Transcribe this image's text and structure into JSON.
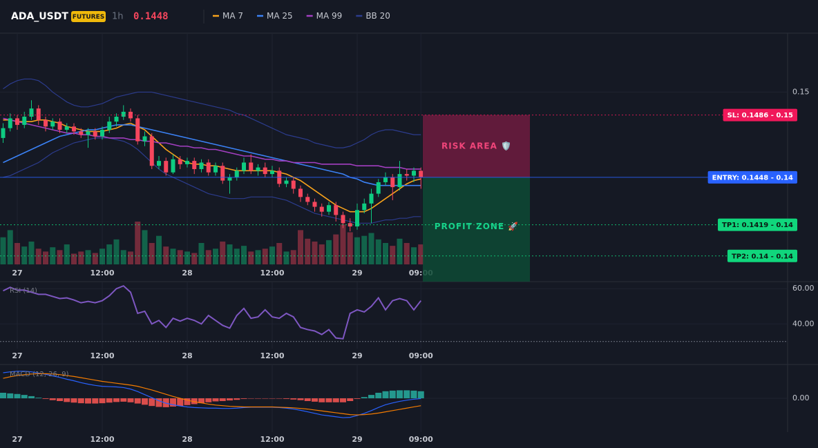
{
  "header": {
    "symbol": "ADA_USDT",
    "badge": "FUTURES",
    "interval": "1h",
    "price": 0.1448
  },
  "chart_data": [
    {
      "type": "candlestick",
      "categories": [
        null,
        null,
        "27",
        null,
        null,
        null,
        null,
        null,
        null,
        null,
        null,
        null,
        null,
        null,
        "12:00",
        null,
        null,
        null,
        null,
        null,
        null,
        null,
        null,
        null,
        null,
        null,
        "28",
        null,
        null,
        null,
        null,
        null,
        null,
        null,
        null,
        null,
        null,
        null,
        "12:00",
        null,
        null,
        null,
        null,
        null,
        null,
        null,
        null,
        null,
        null,
        null,
        "29",
        null,
        null,
        null,
        null,
        null,
        null,
        null,
        null,
        "09:00"
      ],
      "open": [
        0.1472,
        0.1478,
        0.1484,
        0.148,
        0.1485,
        0.149,
        0.1483,
        0.1479,
        0.1482,
        0.1477,
        0.1479,
        0.1476,
        0.1474,
        0.1476,
        0.1473,
        0.1477,
        0.1482,
        0.1485,
        0.1488,
        0.1484,
        0.147,
        0.1473,
        0.1455,
        0.1458,
        0.1451,
        0.1459,
        0.1456,
        0.1458,
        0.1453,
        0.1457,
        0.1451,
        0.1455,
        0.1446,
        0.1448,
        0.1452,
        0.1457,
        0.1452,
        0.1454,
        0.145,
        0.1452,
        0.1444,
        0.1446,
        0.1441,
        0.1436,
        0.1433,
        0.143,
        0.1427,
        0.1431,
        0.1425,
        0.142,
        0.1418,
        0.1428,
        0.1432,
        0.1438,
        0.1445,
        0.1448,
        0.1442,
        0.145,
        0.1449,
        0.1452
      ],
      "high": [
        0.1481,
        0.1487,
        0.1486,
        0.1488,
        0.1495,
        0.1492,
        0.1485,
        0.1484,
        0.1484,
        0.1481,
        0.1481,
        0.1478,
        0.1478,
        0.1478,
        0.1479,
        0.1485,
        0.1487,
        0.1492,
        0.149,
        0.1486,
        0.1476,
        0.1475,
        0.1461,
        0.146,
        0.1462,
        0.1461,
        0.146,
        0.146,
        0.1459,
        0.1459,
        0.1457,
        0.1457,
        0.145,
        0.1454,
        0.146,
        0.1462,
        0.1456,
        0.1457,
        0.1455,
        0.1454,
        0.1448,
        0.1448,
        0.1443,
        0.1438,
        0.1435,
        0.1432,
        0.1433,
        0.1433,
        0.1427,
        0.1423,
        0.1432,
        0.1435,
        0.1441,
        0.1447,
        0.1451,
        0.145,
        0.1458,
        0.1453,
        0.1454,
        0.1454
      ],
      "low": [
        0.1469,
        0.1476,
        0.1477,
        0.1478,
        0.1483,
        0.148,
        0.1476,
        0.1477,
        0.1475,
        0.1475,
        0.1474,
        0.1472,
        0.1466,
        0.1471,
        0.1471,
        0.1475,
        0.1479,
        0.1483,
        0.1482,
        0.1468,
        0.1467,
        0.1453,
        0.1453,
        0.1449,
        0.145,
        0.1453,
        0.1454,
        0.145,
        0.1451,
        0.1449,
        0.1449,
        0.1444,
        0.1438,
        0.1446,
        0.145,
        0.145,
        0.1449,
        0.1448,
        0.1448,
        0.1442,
        0.1442,
        0.1438,
        0.1433,
        0.1431,
        0.1427,
        0.1424,
        0.1425,
        0.1421,
        0.1417,
        0.1415,
        0.1416,
        0.1426,
        0.142,
        0.1436,
        0.1443,
        0.1434,
        0.144,
        0.1446,
        0.1445,
        0.1441
      ],
      "close": [
        0.1478,
        0.1484,
        0.148,
        0.1485,
        0.149,
        0.1483,
        0.1479,
        0.1482,
        0.1477,
        0.1479,
        0.1476,
        0.1474,
        0.1476,
        0.1473,
        0.1477,
        0.1482,
        0.1485,
        0.1488,
        0.1484,
        0.147,
        0.1473,
        0.1455,
        0.1458,
        0.1451,
        0.1459,
        0.1456,
        0.1458,
        0.1453,
        0.1457,
        0.1451,
        0.1455,
        0.1446,
        0.1448,
        0.1452,
        0.1457,
        0.1452,
        0.1454,
        0.145,
        0.1452,
        0.1444,
        0.1446,
        0.1441,
        0.1436,
        0.1433,
        0.143,
        0.1427,
        0.1431,
        0.1425,
        0.142,
        0.1418,
        0.1428,
        0.1432,
        0.1438,
        0.1445,
        0.1448,
        0.1442,
        0.145,
        0.1449,
        0.1452,
        0.1448
      ],
      "volume": [
        38,
        48,
        30,
        25,
        32,
        22,
        18,
        24,
        20,
        28,
        15,
        18,
        20,
        16,
        22,
        28,
        35,
        20,
        18,
        60,
        48,
        30,
        40,
        25,
        22,
        20,
        18,
        16,
        30,
        20,
        22,
        32,
        28,
        22,
        26,
        18,
        20,
        22,
        25,
        30,
        18,
        20,
        48,
        36,
        32,
        28,
        34,
        42,
        56,
        45,
        38,
        40,
        44,
        35,
        30,
        26,
        36,
        30,
        24,
        28
      ],
      "up_color": "#0ecb81",
      "down_color": "#f6465d",
      "series": [
        {
          "name": "MA 7",
          "color": "#f7a21b",
          "values": [
            0.1483,
            0.1483,
            0.1482,
            0.1482,
            0.1482,
            0.1483,
            0.1483,
            0.1482,
            0.1481,
            0.1479,
            0.1478,
            0.1477,
            0.1476,
            0.1476,
            0.1476,
            0.1477,
            0.1478,
            0.148,
            0.1481,
            0.1479,
            0.1477,
            0.1473,
            0.1469,
            0.1465,
            0.1462,
            0.1459,
            0.1457,
            0.1456,
            0.1456,
            0.1455,
            0.1455,
            0.1454,
            0.1453,
            0.1452,
            0.1452,
            0.1452,
            0.1452,
            0.1452,
            0.1452,
            0.1451,
            0.145,
            0.1448,
            0.1446,
            0.1443,
            0.144,
            0.1437,
            0.1434,
            0.1431,
            0.1429,
            0.1427,
            0.1427,
            0.1427,
            0.1429,
            0.1432,
            0.1435,
            0.1438,
            0.1441,
            0.1444,
            0.1446,
            0.1447
          ]
        },
        {
          "name": "MA 25",
          "color": "#3b82f6",
          "values": [
            0.1457,
            0.1459,
            0.1461,
            0.1463,
            0.1465,
            0.1467,
            0.1469,
            0.1471,
            0.1473,
            0.1474,
            0.1475,
            0.1476,
            0.1477,
            0.1477,
            0.1478,
            0.1479,
            0.148,
            0.148,
            0.148,
            0.1479,
            0.1478,
            0.1477,
            0.1476,
            0.1475,
            0.1474,
            0.1473,
            0.1472,
            0.1471,
            0.147,
            0.1469,
            0.1468,
            0.1467,
            0.1466,
            0.1465,
            0.1464,
            0.1463,
            0.1462,
            0.1461,
            0.146,
            0.1459,
            0.1458,
            0.1457,
            0.1456,
            0.1455,
            0.1454,
            0.1453,
            0.1452,
            0.1451,
            0.145,
            0.1448,
            0.1447,
            0.1445,
            0.1444,
            0.1443,
            0.1443,
            0.1443,
            0.1443,
            0.1443,
            0.1443,
            0.1443
          ]
        },
        {
          "name": "MA 99",
          "color": "#a43fc2",
          "values": [
            0.1484,
            0.1483,
            0.1482,
            0.1481,
            0.148,
            0.1479,
            0.1478,
            0.1477,
            0.1476,
            0.1475,
            0.1475,
            0.1474,
            0.1474,
            0.1473,
            0.1473,
            0.1472,
            0.1472,
            0.1472,
            0.1471,
            0.1471,
            0.147,
            0.147,
            0.1469,
            0.1469,
            0.1468,
            0.1467,
            0.1467,
            0.1466,
            0.1466,
            0.1465,
            0.1465,
            0.1464,
            0.1463,
            0.1462,
            0.1461,
            0.1461,
            0.146,
            0.1459,
            0.1459,
            0.1458,
            0.1458,
            0.1457,
            0.1457,
            0.1457,
            0.1457,
            0.1456,
            0.1456,
            0.1456,
            0.1456,
            0.1456,
            0.1455,
            0.1455,
            0.1455,
            0.1455,
            0.1454,
            0.1454,
            0.1454,
            0.1453,
            0.1453,
            0.1453
          ]
        },
        {
          "name": "BB 20",
          "color": "#2c3c8e",
          "upper": [
            0.1502,
            0.1505,
            0.1507,
            0.1508,
            0.1508,
            0.1507,
            0.1504,
            0.15,
            0.1497,
            0.1494,
            0.1492,
            0.1491,
            0.1491,
            0.1492,
            0.1493,
            0.1495,
            0.1497,
            0.1498,
            0.1499,
            0.15,
            0.15,
            0.15,
            0.1499,
            0.1498,
            0.1497,
            0.1496,
            0.1495,
            0.1494,
            0.1493,
            0.1492,
            0.1491,
            0.149,
            0.1489,
            0.1487,
            0.1486,
            0.1484,
            0.1482,
            0.148,
            0.1478,
            0.1476,
            0.1474,
            0.1473,
            0.1472,
            0.1471,
            0.1469,
            0.1468,
            0.1467,
            0.1466,
            0.1466,
            0.1467,
            0.1469,
            0.1471,
            0.1474,
            0.1476,
            0.1477,
            0.1477,
            0.1476,
            0.1475,
            0.1474,
            0.1474
          ],
          "lower": [
            0.1448,
            0.1449,
            0.1451,
            0.1453,
            0.1455,
            0.1457,
            0.146,
            0.1463,
            0.1465,
            0.1467,
            0.1469,
            0.147,
            0.1471,
            0.1472,
            0.1472,
            0.1472,
            0.1471,
            0.147,
            0.1468,
            0.1465,
            0.1461,
            0.1457,
            0.1453,
            0.145,
            0.1448,
            0.1446,
            0.1444,
            0.1442,
            0.144,
            0.1438,
            0.1437,
            0.1436,
            0.1435,
            0.1435,
            0.1435,
            0.1436,
            0.1436,
            0.1436,
            0.1436,
            0.1435,
            0.1434,
            0.1432,
            0.143,
            0.1428,
            0.1426,
            0.1425,
            0.1424,
            0.1423,
            0.1422,
            0.1421,
            0.142,
            0.142,
            0.142,
            0.1421,
            0.1422,
            0.1422,
            0.1423,
            0.1423,
            0.1424,
            0.1424
          ]
        }
      ],
      "ylim": [
        0.1394,
        0.1536
      ],
      "yticks": [
        0.15
      ],
      "grid": true,
      "levels": [
        {
          "label": "SL: 0.1486 - 0.15",
          "value": 0.1486,
          "color": "#f0185a",
          "text_color": "#ffffff",
          "dashed": true
        },
        {
          "label": "ENTRY: 0.1448 - 0.14",
          "value": 0.1448,
          "color": "#2962ff",
          "text_color": "#ffffff",
          "dashed": false
        },
        {
          "label": "TP1: 0.1419 - 0.14",
          "value": 0.1419,
          "color": "#10d67c",
          "text_color": "#0b1a12",
          "dashed": true
        },
        {
          "label": "TP2: 0.14 - 0.14",
          "value": 0.14,
          "color": "#10d67c",
          "text_color": "#0b1a12",
          "dashed": true
        }
      ],
      "zones": [
        {
          "label": "RISK AREA 🛡️",
          "color": "#6e1c40",
          "text_color": "#f0457a"
        },
        {
          "label": "PROFIT ZONE 🚀",
          "color": "#0d4a35",
          "text_color": "#17d18b"
        }
      ]
    },
    {
      "type": "line",
      "title": "RSI (14)",
      "color": "#7e57c2",
      "values": [
        58.8,
        60.8,
        59.2,
        59.2,
        58,
        56.8,
        56.8,
        55.6,
        54.4,
        54.8,
        53.6,
        52,
        52.8,
        52,
        53.2,
        56,
        60,
        61.6,
        58,
        46,
        47.2,
        40,
        42,
        38,
        43.2,
        41.6,
        43.2,
        42,
        40,
        44.8,
        42,
        39.2,
        37.6,
        44.8,
        48.8,
        43.2,
        44,
        48,
        44,
        43.2,
        46,
        44,
        38,
        36.8,
        36,
        34,
        36.8,
        32,
        31.6,
        46,
        48,
        46.8,
        50,
        54.8,
        48,
        53.2,
        54.4,
        53.2,
        48,
        53.2
      ],
      "ylim": [
        26,
        64
      ],
      "yticks": [
        {
          "value": 60,
          "label": "60.00"
        },
        {
          "value": 40,
          "label": "40.00"
        }
      ],
      "guide_lines": [
        30
      ]
    },
    {
      "type": "macd",
      "title": "MACD (12, 26, 9)",
      "macd": [
        0.00083,
        0.00086,
        0.00088,
        0.00088,
        0.00086,
        0.00082,
        0.00078,
        0.00073,
        0.00068,
        0.00062,
        0.00057,
        0.00051,
        0.00046,
        0.00042,
        0.00039,
        0.00038,
        0.00037,
        0.00035,
        0.0003,
        0.00022,
        0.00012,
        2e-05,
        -8e-05,
        -0.00016,
        -0.00021,
        -0.00025,
        -0.00028,
        -0.0003,
        -0.00031,
        -0.00032,
        -0.00032,
        -0.00033,
        -0.00033,
        -0.00032,
        -0.0003,
        -0.00029,
        -0.00029,
        -0.00029,
        -0.00029,
        -0.0003,
        -0.00032,
        -0.00035,
        -0.00039,
        -0.00044,
        -0.00049,
        -0.00054,
        -0.00057,
        -0.0006,
        -0.00063,
        -0.00062,
        -0.00056,
        -0.00049,
        -0.0004,
        -0.0003,
        -0.00021,
        -0.00015,
        -0.0001,
        -6e-05,
        -3e-05,
        -1e-05
      ],
      "signal": [
        0.00065,
        0.0007,
        0.00074,
        0.00077,
        0.00079,
        0.0008,
        0.0008,
        0.00079,
        0.00077,
        0.00074,
        0.00071,
        0.00067,
        0.00063,
        0.00059,
        0.00055,
        0.00052,
        0.00049,
        0.00046,
        0.00043,
        0.00039,
        0.00033,
        0.00027,
        0.0002,
        0.00013,
        6e-05,
        0,
        -6e-05,
        -0.00011,
        -0.00015,
        -0.00019,
        -0.00022,
        -0.00024,
        -0.00026,
        -0.00027,
        -0.00028,
        -0.00028,
        -0.00028,
        -0.00028,
        -0.00028,
        -0.00029,
        -0.0003,
        -0.00031,
        -0.00033,
        -0.00035,
        -0.00038,
        -0.00041,
        -0.00044,
        -0.00047,
        -0.0005,
        -0.00053,
        -0.00054,
        -0.00053,
        -0.00051,
        -0.00048,
        -0.00044,
        -0.0004,
        -0.00036,
        -0.00032,
        -0.00028,
        -0.00024
      ],
      "histogram": [
        0.00018,
        0.00016,
        0.00014,
        0.00011,
        7e-05,
        2e-05,
        -2e-05,
        -6e-05,
        -9e-05,
        -0.00012,
        -0.00014,
        -0.00016,
        -0.00017,
        -0.00017,
        -0.00016,
        -0.00014,
        -0.00012,
        -0.00011,
        -0.00013,
        -0.00017,
        -0.00021,
        -0.00025,
        -0.00028,
        -0.00029,
        -0.00027,
        -0.00025,
        -0.00022,
        -0.00019,
        -0.00016,
        -0.00013,
        -0.0001,
        -9e-05,
        -7e-05,
        -5e-05,
        -2e-05,
        -1e-05,
        -1e-05,
        -1e-05,
        -1e-05,
        -1e-05,
        -2e-05,
        -4e-05,
        -6e-05,
        -9e-05,
        -0.00011,
        -0.00013,
        -0.00013,
        -0.00013,
        -0.00013,
        -9e-05,
        -2e-05,
        4e-05,
        0.00011,
        0.00018,
        0.00023,
        0.00025,
        0.00026,
        0.00026,
        0.00025,
        0.00023
      ],
      "macd_color": "#2962ff",
      "signal_color": "#f57c00",
      "up_color": "#26a69a",
      "down_color": "#ef5350",
      "ylim": [
        -0.0011,
        0.0011
      ],
      "yticks": [
        {
          "value": 0,
          "label": "0.00"
        }
      ]
    }
  ]
}
